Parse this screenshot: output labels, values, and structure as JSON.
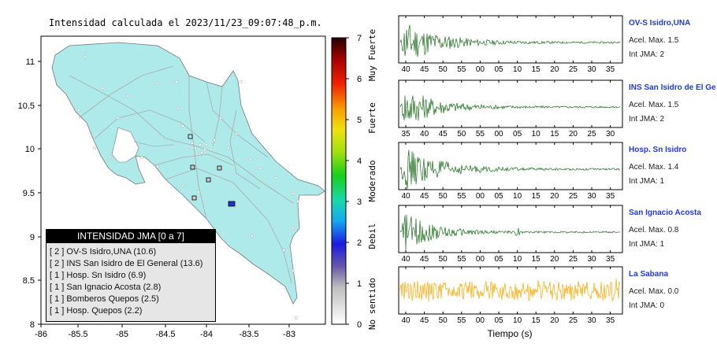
{
  "map": {
    "title": "Intensidad calculada el 2023/11/23_09:07:48_p.m.",
    "x_ticks": [
      "-86",
      "-85.5",
      "-85",
      "-84.5",
      "-84",
      "-83.5",
      "-83"
    ],
    "y_ticks": [
      "11",
      "10.5",
      "10",
      "9.5",
      "9",
      "8.5",
      "8"
    ]
  },
  "colorbar": {
    "ticks": [
      "0",
      "1",
      "2",
      "3",
      "4",
      "5",
      "6",
      "7"
    ],
    "categories": [
      "No sentido",
      "Debil",
      "Moderado",
      "Fuerte",
      "Muy Fuerte"
    ]
  },
  "legend": {
    "title": "INTENSIDAD JMA [0 a 7]",
    "items": [
      "[ 2 ]  OV-S Isidro,UNA (10.6)",
      "[ 2 ]  INS San Isidro de El General (13.6)",
      "[ 1 ]  Hosp. Sn Isidro (6.9)",
      "[ 1 ]  San Ignacio Acosta (2.8)",
      "[ 1 ]  Bomberos Quepos (2.5)",
      "[ 1 ]  Hosp. Quepos (2.2)"
    ]
  },
  "waveforms": {
    "xlabel": "Tiempo (s)",
    "stations": [
      {
        "name": "OV-S Isidro,UNA",
        "acel": "Acel. Max. 1.5",
        "jma": "Int JMA: 2",
        "color": "#1a6e1a",
        "amp": 1.0,
        "decay": 0.05,
        "ticks": [
          "40",
          "45",
          "50",
          "55",
          "00",
          "05",
          "10",
          "15",
          "20",
          "25",
          "30",
          "35"
        ]
      },
      {
        "name": "INS San Isidro de El Ge",
        "acel": "Acel. Max. 1.5",
        "jma": "Int JMA: 2",
        "color": "#1a6e1a",
        "amp": 0.95,
        "decay": 0.055,
        "ticks": [
          "35",
          "40",
          "45",
          "50",
          "55",
          "00",
          "05",
          "10",
          "15",
          "20",
          "25",
          "30"
        ]
      },
      {
        "name": "Hosp. Sn Isidro",
        "acel": "Acel. Max. 1.4",
        "jma": "Int JMA: 1",
        "color": "#1a6e1a",
        "amp": 1.0,
        "decay": 0.05,
        "ticks": [
          "40",
          "45",
          "50",
          "55",
          "00",
          "05",
          "10",
          "15",
          "20",
          "25",
          "30",
          "35"
        ]
      },
      {
        "name": "San Ignacio Acosta",
        "acel": "Acel. Max. 0.8",
        "jma": "Int JMA: 1",
        "color": "#1a6e1a",
        "amp": 0.9,
        "decay": 0.06,
        "ticks": [
          "40",
          "45",
          "50",
          "55",
          "00",
          "05",
          "10",
          "15",
          "20",
          "25",
          "30",
          "35"
        ]
      },
      {
        "name": "La Sabana",
        "acel": "Acel. Max. 0.0",
        "jma": "Int JMA: 0",
        "color": "#f5a800",
        "amp": 0.55,
        "decay": 0.0,
        "ticks": [
          "40",
          "45",
          "50",
          "55",
          "00",
          "05",
          "10",
          "15",
          "20",
          "25",
          "30",
          "35"
        ]
      }
    ]
  },
  "chart_data": {
    "type": "line",
    "title": "Intensidad calculada el 2023/11/23_09:07:48_p.m.",
    "xlabel": "Tiempo (s)",
    "series": [
      {
        "name": "OV-S Isidro,UNA",
        "peak_accel": 1.5,
        "jma": 2
      },
      {
        "name": "INS San Isidro de El Ge",
        "peak_accel": 1.5,
        "jma": 2
      },
      {
        "name": "Hosp. Sn Isidro",
        "peak_accel": 1.4,
        "jma": 1
      },
      {
        "name": "San Ignacio Acosta",
        "peak_accel": 0.8,
        "jma": 1
      },
      {
        "name": "La Sabana",
        "peak_accel": 0.0,
        "jma": 0
      }
    ]
  }
}
